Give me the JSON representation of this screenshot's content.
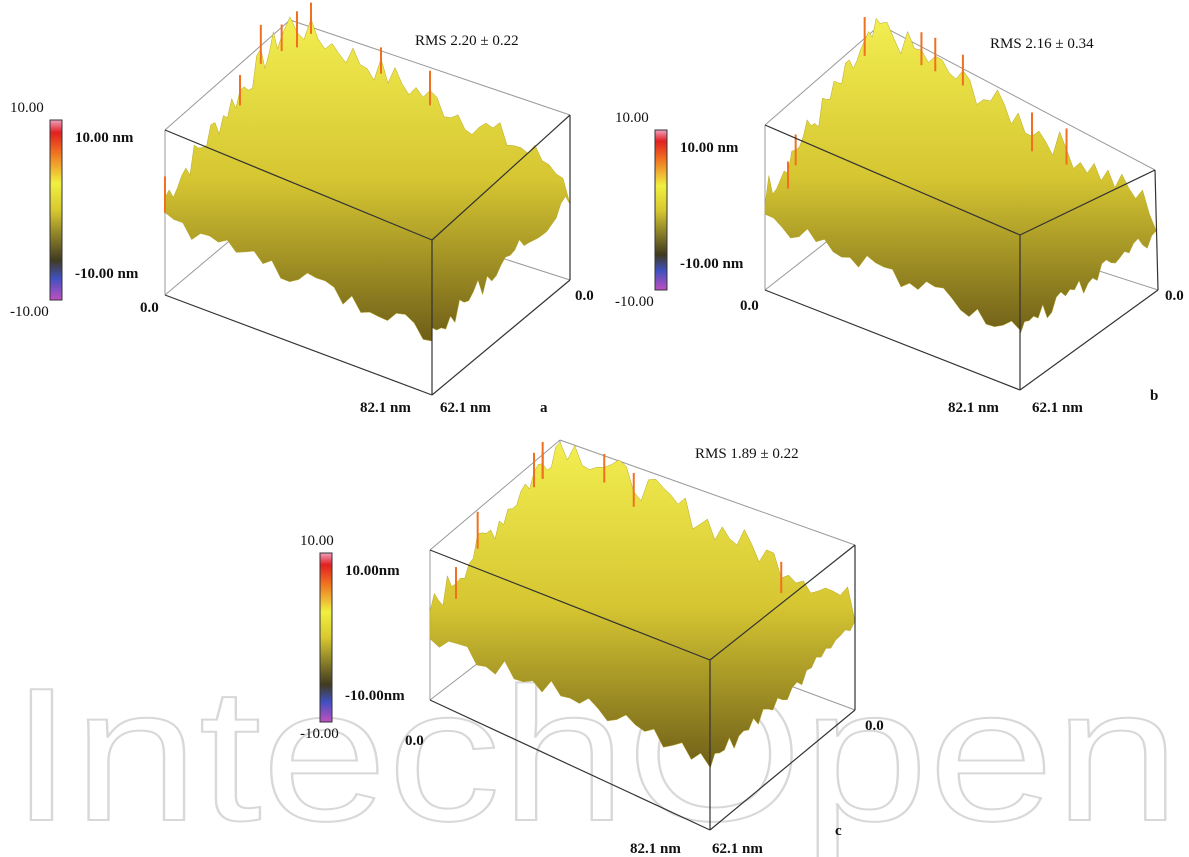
{
  "panels": [
    {
      "letter": "a",
      "rms": "RMS  2.20 ± 0.22",
      "scale_max": "10.00",
      "scale_min": "-10.00",
      "top_label": "10.00 nm",
      "bottom_label": "-10.00 nm",
      "origin_left": "0.0",
      "origin_right": "0.0",
      "x_end": "82.1 nm",
      "y_end": "62.1 nm"
    },
    {
      "letter": "b",
      "rms": "RMS  2.16 ± 0.34",
      "scale_max": "10.00",
      "scale_min": "-10.00",
      "top_label": "10.00 nm",
      "bottom_label": "-10.00 nm",
      "origin_left": "0.0",
      "origin_right": "0.0",
      "x_end": "82.1 nm",
      "y_end": "62.1 nm"
    },
    {
      "letter": "c",
      "rms": "RMS  1.89 ± 0.22",
      "scale_max": "10.00",
      "scale_min": "-10.00",
      "top_label": "10.00nm",
      "bottom_label": "-10.00nm",
      "origin_left": "0.0",
      "origin_right": "0.0",
      "x_end": "82.1 nm",
      "y_end": "62.1 nm"
    }
  ],
  "watermark": "IntechOpen"
}
